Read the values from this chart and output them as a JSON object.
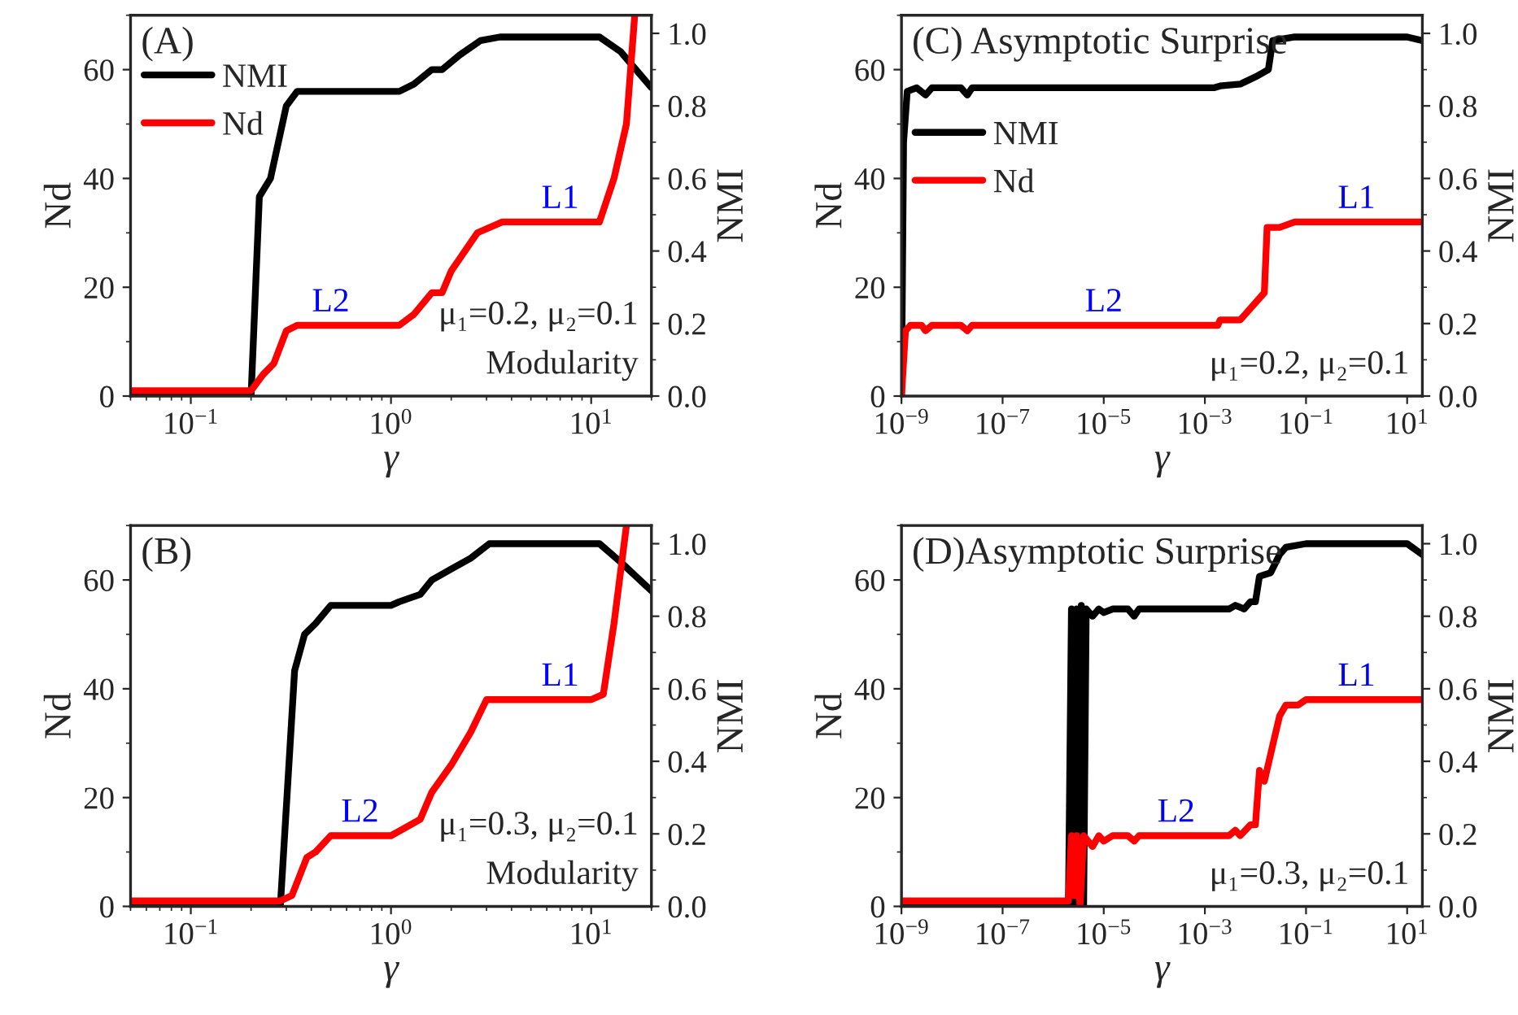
{
  "chart_data": [
    {
      "type": "line",
      "title": "(A)",
      "xlabel": "γ",
      "ylabel": "Nd",
      "y2label": "NMI",
      "log": "x",
      "legend": "top left",
      "xlim": [
        0.05,
        20
      ],
      "xticks": [
        {
          "value": 0.1,
          "label": "10$^{−1}$"
        },
        {
          "value": 1,
          "label": "10$^{0}$"
        },
        {
          "value": 10,
          "label": "10$^{1}$"
        }
      ],
      "ylim": [
        0,
        70
      ],
      "yticks": [
        0,
        20,
        40,
        60
      ],
      "y2lim": [
        0,
        1.05
      ],
      "y2ticks": [
        {
          "value": 0,
          "label": "0.0"
        },
        {
          "value": 0.2,
          "label": "0.2"
        },
        {
          "value": 0.4,
          "label": "0.4"
        },
        {
          "value": 0.6,
          "label": "0.6"
        },
        {
          "value": 0.8,
          "label": "0.8"
        },
        {
          "value": 1,
          "label": "1.0"
        }
      ],
      "series": [
        {
          "name": "NMI",
          "color": "#000000",
          "axis": "y2",
          "x": [
            0.05,
            0.2,
            0.22,
            0.25,
            0.3,
            0.34,
            1.1,
            1.3,
            1.6,
            1.8,
            2.2,
            2.8,
            3.5,
            11,
            14,
            20
          ],
          "values": [
            0,
            0,
            0.55,
            0.6,
            0.8,
            0.84,
            0.84,
            0.86,
            0.9,
            0.9,
            0.94,
            0.98,
            0.99,
            0.99,
            0.95,
            0.85
          ]
        },
        {
          "name": "Nd",
          "color": "#ff0000",
          "x": [
            0.05,
            0.2,
            0.23,
            0.26,
            0.3,
            0.34,
            1.1,
            1.3,
            1.6,
            1.8,
            2.0,
            2.7,
            3.6,
            11,
            13,
            15,
            16.5
          ],
          "values": [
            1,
            1,
            4,
            6,
            12,
            13,
            13,
            15,
            19,
            19,
            23,
            30,
            32,
            32,
            40,
            50,
            70
          ]
        }
      ],
      "annotations": [
        {
          "text": "L2",
          "x": 0.5,
          "y": 13
        },
        {
          "text": "L1",
          "x": 7,
          "y": 32
        },
        "μ₁=0.2, μ₂=0.1",
        "Modularity"
      ]
    },
    {
      "type": "line",
      "title": "(C) Asymptotic Surprise",
      "xlabel": "γ",
      "ylabel": "Nd",
      "y2label": "NMI",
      "log": "x",
      "legend": "left",
      "xlim": [
        1e-09,
        20
      ],
      "xticks": [
        {
          "value": 1e-09,
          "label": "10$^{−9}$"
        },
        {
          "value": 1e-07,
          "label": "10$^{−7}$"
        },
        {
          "value": 1e-05,
          "label": "10$^{−5}$"
        },
        {
          "value": 0.001,
          "label": "10$^{−3}$"
        },
        {
          "value": 0.1,
          "label": "10$^{−1}$"
        },
        {
          "value": 10,
          "label": "10$^{1}$"
        }
      ],
      "ylim": [
        0,
        70
      ],
      "yticks": [
        0,
        20,
        40,
        60
      ],
      "y2lim": [
        0,
        1.05
      ],
      "y2ticks": [
        {
          "value": 0,
          "label": "0.0"
        },
        {
          "value": 0.2,
          "label": "0.2"
        },
        {
          "value": 0.4,
          "label": "0.4"
        },
        {
          "value": 0.6,
          "label": "0.6"
        },
        {
          "value": 0.8,
          "label": "0.8"
        },
        {
          "value": 1,
          "label": "1.0"
        }
      ],
      "series": [
        {
          "name": "NMI",
          "color": "#000000",
          "axis": "y2",
          "x": [
            1e-09,
            1.1e-09,
            1.3e-09,
            2e-09,
            3e-09,
            4e-09,
            1.5e-08,
            2e-08,
            2.5e-08,
            0.0015,
            0.002,
            0.005,
            0.01,
            0.018,
            0.022,
            0.06,
            10,
            20
          ],
          "values": [
            0,
            0.7,
            0.84,
            0.85,
            0.83,
            0.85,
            0.85,
            0.83,
            0.85,
            0.85,
            0.855,
            0.86,
            0.88,
            0.9,
            0.98,
            0.99,
            0.99,
            0.98
          ]
        },
        {
          "name": "Nd",
          "color": "#ff0000",
          "x": [
            1e-09,
            1.2e-09,
            1.5e-09,
            2.5e-09,
            3e-09,
            4e-09,
            1.5e-08,
            2e-08,
            2.5e-08,
            0.0018,
            0.002,
            0.005,
            0.015,
            0.017,
            0.03,
            0.06,
            20
          ],
          "values": [
            0,
            12,
            13,
            13,
            12,
            13,
            13,
            12,
            13,
            13,
            14,
            14,
            19,
            31,
            31,
            32,
            32
          ]
        }
      ],
      "annotations": [
        {
          "text": "L2",
          "x": 1e-05,
          "y": 13
        },
        {
          "text": "L1",
          "x": 1,
          "y": 32
        },
        "μ₁=0.2, μ₂=0.1"
      ]
    },
    {
      "type": "line",
      "title": "(B)",
      "xlabel": "γ",
      "ylabel": "Nd",
      "y2label": "NMI",
      "log": "x",
      "xlim": [
        0.05,
        20
      ],
      "xticks": [
        {
          "value": 0.1,
          "label": "10$^{−1}$"
        },
        {
          "value": 1,
          "label": "10$^{0}$"
        },
        {
          "value": 10,
          "label": "10$^{1}$"
        }
      ],
      "ylim": [
        0,
        70
      ],
      "yticks": [
        0,
        20,
        40,
        60
      ],
      "y2lim": [
        0,
        1.05
      ],
      "y2ticks": [
        {
          "value": 0,
          "label": "0.0"
        },
        {
          "value": 0.2,
          "label": "0.2"
        },
        {
          "value": 0.4,
          "label": "0.4"
        },
        {
          "value": 0.6,
          "label": "0.6"
        },
        {
          "value": 0.8,
          "label": "0.8"
        },
        {
          "value": 1,
          "label": "1.0"
        }
      ],
      "series": [
        {
          "color": "#000000",
          "axis": "y2",
          "x": [
            0.05,
            0.28,
            0.33,
            0.37,
            0.42,
            0.5,
            1.0,
            1.1,
            1.4,
            1.6,
            2,
            2.5,
            3.1,
            11,
            14,
            20
          ],
          "values": [
            0,
            0,
            0.65,
            0.75,
            0.78,
            0.83,
            0.83,
            0.84,
            0.86,
            0.9,
            0.93,
            0.96,
            1.0,
            1.0,
            0.95,
            0.87
          ]
        },
        {
          "color": "#ff0000",
          "x": [
            0.05,
            0.28,
            0.32,
            0.38,
            0.42,
            0.5,
            1.0,
            1.4,
            1.6,
            2,
            2.5,
            3.0,
            10,
            11.5,
            13,
            15
          ],
          "values": [
            1,
            1,
            2,
            9,
            10,
            13,
            13,
            16,
            21,
            26,
            32,
            38,
            38,
            39,
            52,
            70
          ]
        }
      ],
      "annotations": [
        {
          "text": "L2",
          "x": 0.7,
          "y": 13
        },
        {
          "text": "L1",
          "x": 7,
          "y": 38
        },
        "μ₁=0.3, μ₂=0.1",
        "Modularity"
      ]
    },
    {
      "type": "line",
      "title": "(D)Asymptotic Surprise",
      "xlabel": "γ",
      "ylabel": "Nd",
      "y2label": "NMI",
      "log": "x",
      "xlim": [
        1e-09,
        20
      ],
      "xticks": [
        {
          "value": 1e-09,
          "label": "10$^{−9}$"
        },
        {
          "value": 1e-07,
          "label": "10$^{−7}$"
        },
        {
          "value": 1e-05,
          "label": "10$^{−5}$"
        },
        {
          "value": 0.001,
          "label": "10$^{−3}$"
        },
        {
          "value": 0.1,
          "label": "10$^{−1}$"
        },
        {
          "value": 10,
          "label": "10$^{1}$"
        }
      ],
      "ylim": [
        0,
        70
      ],
      "yticks": [
        0,
        20,
        40,
        60
      ],
      "y2lim": [
        0,
        1.05
      ],
      "y2ticks": [
        {
          "value": 0,
          "label": "0.0"
        },
        {
          "value": 0.2,
          "label": "0.2"
        },
        {
          "value": 0.4,
          "label": "0.4"
        },
        {
          "value": 0.6,
          "label": "0.6"
        },
        {
          "value": 0.8,
          "label": "0.8"
        },
        {
          "value": 1,
          "label": "1.0"
        }
      ],
      "series": [
        {
          "color": "#000000",
          "axis": "y2",
          "x": [
            1e-09,
            2e-06,
            2.3e-06,
            2.6e-06,
            2.9e-06,
            3.2e-06,
            3.6e-06,
            4e-06,
            4.5e-06,
            6e-06,
            8e-06,
            1e-05,
            1.5e-05,
            3e-05,
            4e-05,
            5e-05,
            0.003,
            0.004,
            0.006,
            0.008,
            0.01,
            0.012,
            0.02,
            0.03,
            0.04,
            0.1,
            10,
            20
          ],
          "values": [
            0,
            0,
            0.82,
            0,
            0.82,
            0.05,
            0.83,
            0,
            0.82,
            0.8,
            0.82,
            0.81,
            0.82,
            0.82,
            0.8,
            0.82,
            0.82,
            0.83,
            0.82,
            0.84,
            0.84,
            0.91,
            0.92,
            0.97,
            0.99,
            1.0,
            1.0,
            0.97
          ]
        },
        {
          "color": "#ff0000",
          "x": [
            1e-09,
            2e-06,
            2.3e-06,
            2.6e-06,
            2.9e-06,
            3.4e-06,
            4e-06,
            6e-06,
            8e-06,
            1e-05,
            1.5e-05,
            3e-05,
            4e-05,
            5e-05,
            0.003,
            0.004,
            0.005,
            0.008,
            0.01,
            0.012,
            0.015,
            0.02,
            0.03,
            0.04,
            0.07,
            0.1,
            20
          ],
          "values": [
            1,
            1,
            13,
            2,
            13,
            0,
            13,
            11,
            13,
            12,
            13,
            13,
            12,
            13,
            13,
            14,
            13,
            15,
            15,
            25,
            23,
            28,
            35,
            37,
            37,
            38,
            38
          ]
        }
      ],
      "annotations": [
        {
          "text": "L2",
          "x": 0.00027,
          "y": 13
        },
        {
          "text": "L1",
          "x": 1,
          "y": 38
        },
        "μ₁=0.3, μ₂=0.1"
      ]
    }
  ]
}
